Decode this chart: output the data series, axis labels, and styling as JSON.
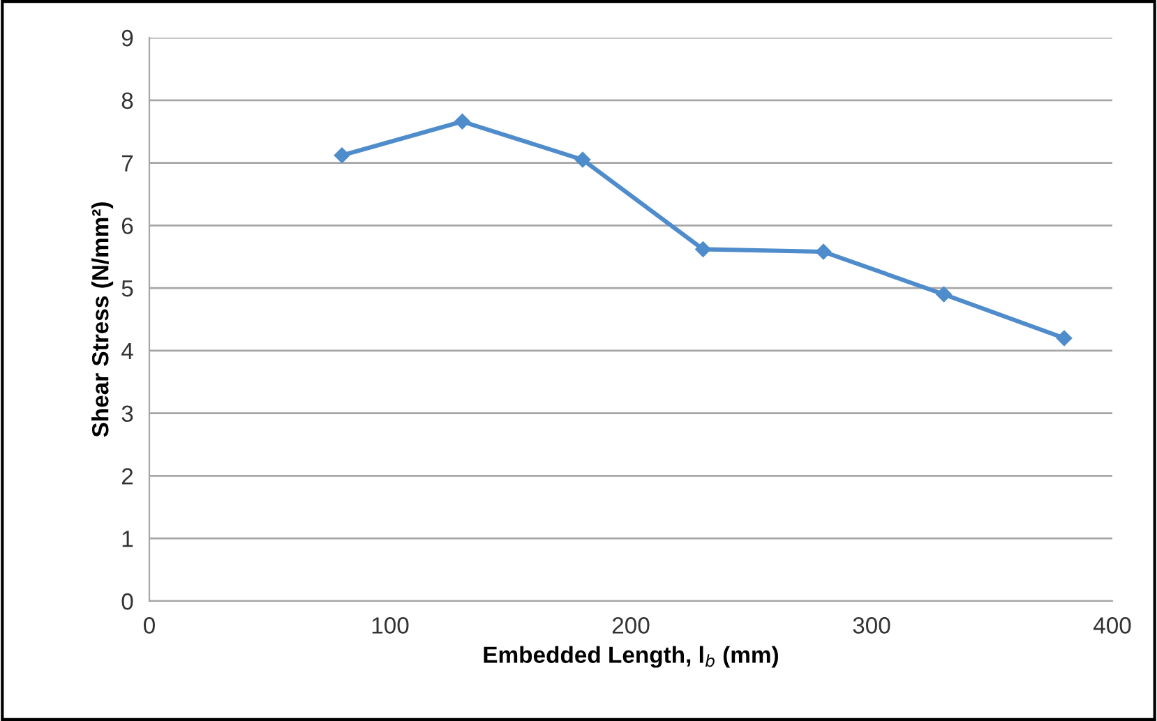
{
  "chart_data": {
    "type": "line",
    "xlabel": "Embedded Length, l$_{b}$ (mm)",
    "ylabel": "Shear Stress (N/mm²)",
    "x": [
      80,
      130,
      180,
      230,
      280,
      330,
      380
    ],
    "series": [
      {
        "color": "#4f8ccb",
        "values": [
          7.12,
          7.66,
          7.05,
          5.62,
          5.58,
          4.9,
          4.2
        ]
      }
    ],
    "xlim": [
      0,
      400
    ],
    "xticks": [
      0,
      100,
      200,
      300,
      400
    ],
    "ylim": [
      0,
      9
    ],
    "yticks": [
      0,
      1,
      2,
      3,
      4,
      5,
      6,
      7,
      8,
      9
    ],
    "grid": "y",
    "marker": "diamond",
    "line_style": "solid",
    "legend": false
  }
}
